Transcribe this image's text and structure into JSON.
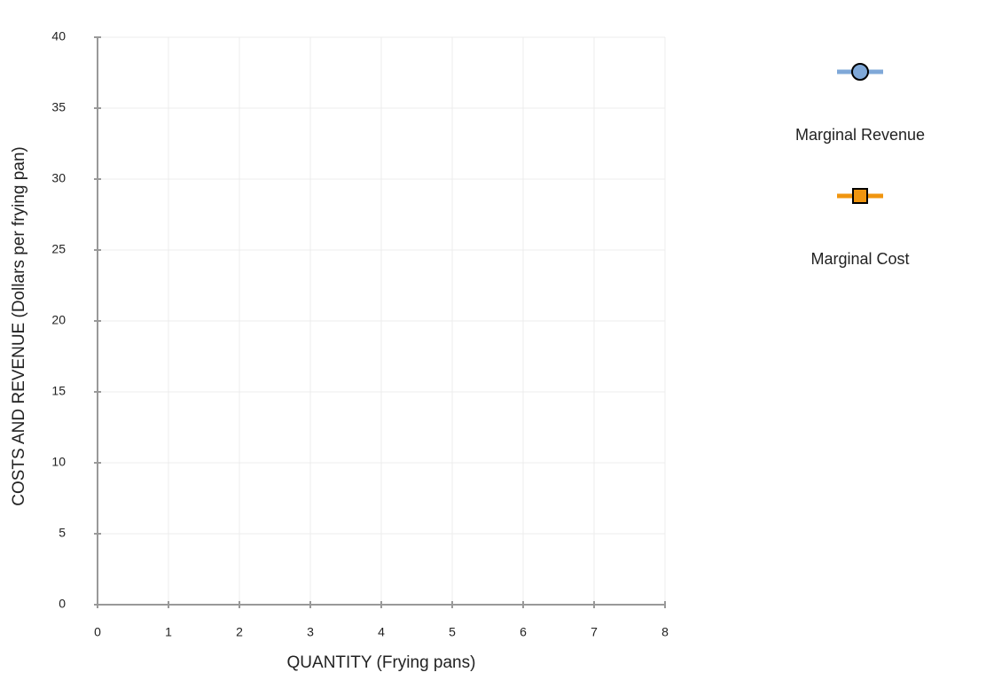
{
  "chart_data": {
    "type": "line",
    "x_label": "QUANTITY (Frying pans)",
    "y_label": "COSTS AND REVENUE (Dollars per frying pan)",
    "x": [],
    "series": [
      {
        "name": "Marginal Revenue",
        "color": "#7fa8d8",
        "marker": "circle",
        "values": []
      },
      {
        "name": "Marginal Cost",
        "color": "#f0950f",
        "marker": "square",
        "values": []
      }
    ],
    "xlim": [
      0,
      8
    ],
    "xticks": [
      0,
      1,
      2,
      3,
      4,
      5,
      6,
      7,
      8
    ],
    "ylim": [
      0,
      40
    ],
    "yticks": [
      0,
      5,
      10,
      15,
      20,
      25,
      30,
      35,
      40
    ],
    "grid": true
  }
}
